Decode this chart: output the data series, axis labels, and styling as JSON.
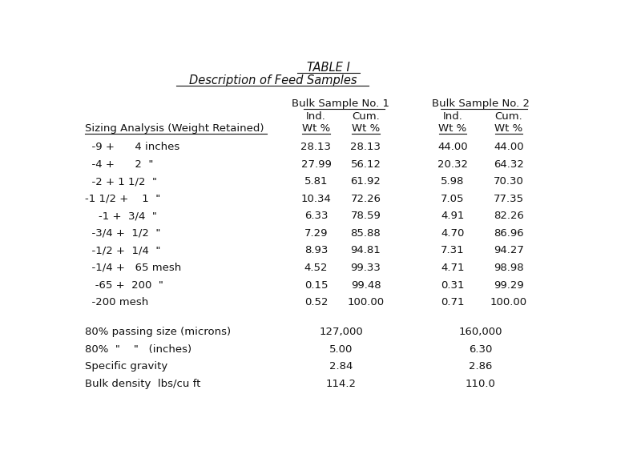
{
  "title1": "TABLE I",
  "title2": "Description of Feed Samples",
  "row_header": "Sizing Analysis (Weight Retained)",
  "sizing_rows": [
    [
      "  -9 +      4 inches",
      "28.13",
      "28.13",
      "44.00",
      "44.00"
    ],
    [
      "  -4 +      2  \"",
      "27.99",
      "56.12",
      "20.32",
      "64.32"
    ],
    [
      "  -2 + 1 1/2  \"",
      "5.81",
      "61.92",
      "5.98",
      "70.30"
    ],
    [
      "-1 1/2 +    1  \"",
      "10.34",
      "72.26",
      "7.05",
      "77.35"
    ],
    [
      "    -1 +  3/4  \"",
      "6.33",
      "78.59",
      "4.91",
      "82.26"
    ],
    [
      "  -3/4 +  1/2  \"",
      "7.29",
      "85.88",
      "4.70",
      "86.96"
    ],
    [
      "  -1/2 +  1/4  \"",
      "8.93",
      "94.81",
      "7.31",
      "94.27"
    ],
    [
      "  -1/4 +   65 mesh",
      "4.52",
      "99.33",
      "4.71",
      "98.98"
    ],
    [
      "   -65 +  200  \"",
      "0.15",
      "99.48",
      "0.31",
      "99.29"
    ],
    [
      "  -200 mesh",
      "0.52",
      "100.00",
      "0.71",
      "100.00"
    ]
  ],
  "summary_rows": [
    [
      "80% passing size (microns)",
      "127,000",
      "160,000"
    ],
    [
      "80%  \"    \"   (inches)",
      "5.00",
      "6.30"
    ],
    [
      "Specific gravity",
      "2.84",
      "2.86"
    ],
    [
      "Bulk density  lbs/cu ft",
      "114.2",
      "110.0"
    ]
  ],
  "bg_color": "#ffffff",
  "text_color": "#111111",
  "font_size": 9.5
}
